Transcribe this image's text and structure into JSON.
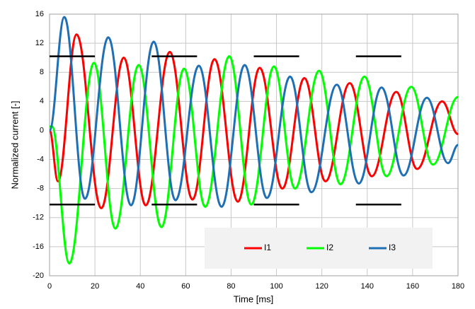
{
  "chart_data": {
    "type": "line",
    "x_label": "Time [ms]",
    "y_label": "Normalized current [-]",
    "xlim": [
      0,
      180
    ],
    "ylim": [
      -20,
      16
    ],
    "xticks": [
      0,
      20,
      40,
      60,
      80,
      100,
      120,
      140,
      160,
      180
    ],
    "yticks": [
      -20,
      -16,
      -12,
      -8,
      -4,
      0,
      4,
      8,
      12,
      16
    ],
    "grid": true,
    "series": [
      {
        "name": "I1",
        "color": "#ff0000",
        "x": [
          0,
          3.7,
          11.9,
          22.8,
          32.7,
          42.4,
          53,
          63,
          72.7,
          83,
          92.6,
          102.6,
          112.3,
          121.6,
          132.3,
          142,
          152.8,
          162,
          173,
          180
        ],
        "values": [
          0,
          -7,
          13.2,
          -10.7,
          10,
          -10.3,
          10.8,
          -9.5,
          9.8,
          -9.8,
          8.6,
          -8,
          7.2,
          -7,
          6.5,
          -6.3,
          5.3,
          -5.3,
          4,
          -0.5
        ]
      },
      {
        "name": "I2",
        "color": "#00ff00",
        "x": [
          0,
          1,
          8.7,
          19.6,
          29,
          39.3,
          49.3,
          59.3,
          68.6,
          79.2,
          88.9,
          98.9,
          108.2,
          118.8,
          128.2,
          138.8,
          148.5,
          159.4,
          169,
          180
        ],
        "values": [
          0.5,
          0.6,
          -18.3,
          9.3,
          -13.5,
          9,
          -13.3,
          8.5,
          -10.5,
          10.2,
          -10.2,
          8.8,
          -8,
          8.2,
          -7.4,
          7.4,
          -6.3,
          6,
          -4.7,
          4.6
        ]
      },
      {
        "name": "I3",
        "color": "#1f6fb4",
        "x": [
          0,
          6.5,
          15.6,
          25.9,
          35.9,
          45.9,
          55.5,
          65.8,
          75.8,
          86,
          95.8,
          106,
          115.4,
          126.6,
          136.3,
          146.3,
          156,
          166.3,
          175.6,
          180
        ],
        "values": [
          0,
          15.6,
          -9.4,
          12.8,
          -10.3,
          12.2,
          -9.6,
          8.9,
          -10.5,
          9,
          -9.3,
          7.4,
          -8.5,
          6.3,
          -7.3,
          5.9,
          -6.2,
          4.5,
          -4.5,
          -2
        ]
      },
      {
        "color": "#000000",
        "x": [
          0,
          20
        ],
        "values": [
          10.2,
          10.2
        ]
      },
      {
        "color": "#000000",
        "x": [
          45,
          65
        ],
        "values": [
          10.2,
          10.2
        ]
      },
      {
        "color": "#000000",
        "x": [
          90,
          110
        ],
        "values": [
          10.2,
          10.2
        ]
      },
      {
        "color": "#000000",
        "x": [
          135,
          155
        ],
        "values": [
          10.2,
          10.2
        ]
      },
      {
        "color": "#000000",
        "x": [
          0,
          20
        ],
        "values": [
          -10.2,
          -10.2
        ]
      },
      {
        "color": "#000000",
        "x": [
          45,
          65
        ],
        "values": [
          -10.2,
          -10.2
        ]
      },
      {
        "color": "#000000",
        "x": [
          90,
          110
        ],
        "values": [
          -10.2,
          -10.2
        ]
      },
      {
        "color": "#000000",
        "x": [
          135,
          155
        ],
        "values": [
          -10.2,
          -10.2
        ]
      }
    ]
  }
}
